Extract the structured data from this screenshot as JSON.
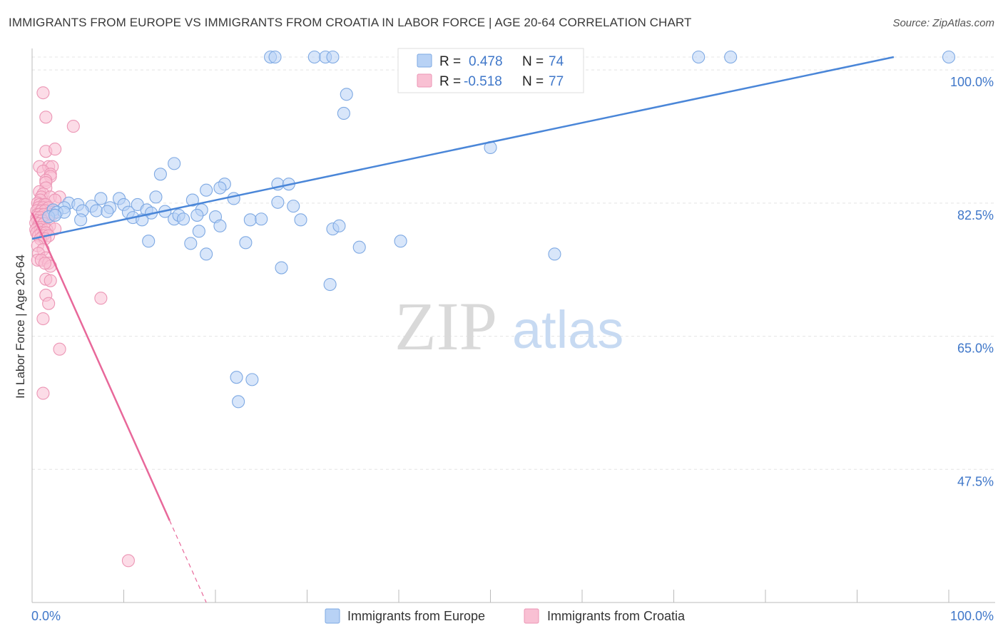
{
  "chart_data": {
    "type": "scatter",
    "title": "IMMIGRANTS FROM EUROPE VS IMMIGRANTS FROM CROATIA IN LABOR FORCE | AGE 20-64 CORRELATION CHART",
    "source": "Source: ZipAtlas.com",
    "ylabel": "In Labor Force | Age 20-64",
    "xlabel": "",
    "xlim": [
      0,
      100
    ],
    "ylim": [
      30,
      101.7
    ],
    "x_tick_labels": [
      "0.0%",
      "100.0%"
    ],
    "y_ticks": [
      {
        "value": 100.0,
        "label": "100.0%"
      },
      {
        "value": 82.5,
        "label": "82.5%"
      },
      {
        "value": 65.0,
        "label": "65.0%"
      },
      {
        "value": 47.5,
        "label": "47.5%"
      }
    ],
    "grid": true,
    "watermark": "ZIPatlas",
    "colors": {
      "europe": "#4a86d8",
      "croatia": "#e8689a",
      "europe_fill": "#b8d2f5",
      "croatia_fill": "#f9c0d3",
      "axis_text": "#3f77c9"
    },
    "legend_stats": [
      {
        "r_label": "R =",
        "r_value": "0.478",
        "n_label": "N =",
        "n_value": "74"
      },
      {
        "r_label": "R =",
        "r_value": "-0.518",
        "n_label": "N =",
        "n_value": "77"
      }
    ],
    "series": [
      {
        "name": "Immigrants from Europe",
        "trend": {
          "x0": 0,
          "y0": 77.8,
          "x1": 94,
          "y1": 101.7
        },
        "points": [
          [
            26.0,
            101.7
          ],
          [
            26.5,
            101.7
          ],
          [
            30.8,
            101.7
          ],
          [
            32.0,
            101.7
          ],
          [
            32.8,
            101.7
          ],
          [
            57.0,
            101.7
          ],
          [
            59.5,
            101.7
          ],
          [
            72.7,
            101.7
          ],
          [
            76.2,
            101.7
          ],
          [
            100,
            101.7
          ],
          [
            34.3,
            96.8
          ],
          [
            34.0,
            94.3
          ],
          [
            50.0,
            89.8
          ],
          [
            15.5,
            87.7
          ],
          [
            14.0,
            86.3
          ],
          [
            21.0,
            85.0
          ],
          [
            26.8,
            85.0
          ],
          [
            28.0,
            85.0
          ],
          [
            20.5,
            84.5
          ],
          [
            19.0,
            84.2
          ],
          [
            22.0,
            83.1
          ],
          [
            13.5,
            83.3
          ],
          [
            17.5,
            82.9
          ],
          [
            7.5,
            83.1
          ],
          [
            9.5,
            83.1
          ],
          [
            26.8,
            82.6
          ],
          [
            28.5,
            82.1
          ],
          [
            4.0,
            82.5
          ],
          [
            6.5,
            82.1
          ],
          [
            3.5,
            81.9
          ],
          [
            5.0,
            82.3
          ],
          [
            11.5,
            82.3
          ],
          [
            10.0,
            82.3
          ],
          [
            8.5,
            81.9
          ],
          [
            2.3,
            81.6
          ],
          [
            2.7,
            81.3
          ],
          [
            3.5,
            81.3
          ],
          [
            5.5,
            81.5
          ],
          [
            7.0,
            81.5
          ],
          [
            8.2,
            81.4
          ],
          [
            10.5,
            81.3
          ],
          [
            12.5,
            81.6
          ],
          [
            13.0,
            81.2
          ],
          [
            14.5,
            81.4
          ],
          [
            18.5,
            81.6
          ],
          [
            1.8,
            80.7
          ],
          [
            2.5,
            80.9
          ],
          [
            11.0,
            80.6
          ],
          [
            15.5,
            80.4
          ],
          [
            16.0,
            80.9
          ],
          [
            18.0,
            80.9
          ],
          [
            20.0,
            80.7
          ],
          [
            5.3,
            80.3
          ],
          [
            12.0,
            80.3
          ],
          [
            16.5,
            80.4
          ],
          [
            23.8,
            80.3
          ],
          [
            25.0,
            80.4
          ],
          [
            29.3,
            80.3
          ],
          [
            32.8,
            79.1
          ],
          [
            33.5,
            79.5
          ],
          [
            18.2,
            78.8
          ],
          [
            20.5,
            79.5
          ],
          [
            12.7,
            77.5
          ],
          [
            17.3,
            77.2
          ],
          [
            23.3,
            77.3
          ],
          [
            35.7,
            76.7
          ],
          [
            40.2,
            77.5
          ],
          [
            19.0,
            75.8
          ],
          [
            57.0,
            75.8
          ],
          [
            27.2,
            74.0
          ],
          [
            32.5,
            71.8
          ],
          [
            22.3,
            59.6
          ],
          [
            24.0,
            59.3
          ],
          [
            22.5,
            56.4
          ]
        ]
      },
      {
        "name": "Immigrants from Croatia",
        "trend": {
          "x0": 0,
          "y0": 81.2,
          "x1": 19,
          "y1": 30,
          "solid_until_x": 15
        },
        "points": [
          [
            1.2,
            97.0
          ],
          [
            1.5,
            93.8
          ],
          [
            4.5,
            92.6
          ],
          [
            1.5,
            89.3
          ],
          [
            2.5,
            89.6
          ],
          [
            0.8,
            87.3
          ],
          [
            1.8,
            87.3
          ],
          [
            2.2,
            87.3
          ],
          [
            1.2,
            86.7
          ],
          [
            2.0,
            86.3
          ],
          [
            2.0,
            86.0
          ],
          [
            1.5,
            85.5
          ],
          [
            1.5,
            85.2
          ],
          [
            1.5,
            84.5
          ],
          [
            0.8,
            84.0
          ],
          [
            1.2,
            83.7
          ],
          [
            1.0,
            83.3
          ],
          [
            2.0,
            83.3
          ],
          [
            3.0,
            83.3
          ],
          [
            0.9,
            82.9
          ],
          [
            2.5,
            82.9
          ],
          [
            0.6,
            82.5
          ],
          [
            0.8,
            82.3
          ],
          [
            1.3,
            82.3
          ],
          [
            1.5,
            82.3
          ],
          [
            0.7,
            81.9
          ],
          [
            1.2,
            81.9
          ],
          [
            1.8,
            81.9
          ],
          [
            0.5,
            81.5
          ],
          [
            1.0,
            81.5
          ],
          [
            1.4,
            81.5
          ],
          [
            2.0,
            81.3
          ],
          [
            0.6,
            81.0
          ],
          [
            0.8,
            81.0
          ],
          [
            1.3,
            81.0
          ],
          [
            2.2,
            81.0
          ],
          [
            0.5,
            80.6
          ],
          [
            0.9,
            80.6
          ],
          [
            1.7,
            80.6
          ],
          [
            0.6,
            80.2
          ],
          [
            1.1,
            80.2
          ],
          [
            0.4,
            79.9
          ],
          [
            0.8,
            79.8
          ],
          [
            1.3,
            79.8
          ],
          [
            1.9,
            79.5
          ],
          [
            0.6,
            79.3
          ],
          [
            1.0,
            79.3
          ],
          [
            0.4,
            79.0
          ],
          [
            0.9,
            79.0
          ],
          [
            1.6,
            79.0
          ],
          [
            2.5,
            79.1
          ],
          [
            0.5,
            78.6
          ],
          [
            1.0,
            78.6
          ],
          [
            1.5,
            78.6
          ],
          [
            0.7,
            78.2
          ],
          [
            1.2,
            78.2
          ],
          [
            1.8,
            78.2
          ],
          [
            0.9,
            77.8
          ],
          [
            1.4,
            77.8
          ],
          [
            0.6,
            76.9
          ],
          [
            1.2,
            76.4
          ],
          [
            0.7,
            75.9
          ],
          [
            1.5,
            75.3
          ],
          [
            0.6,
            75.0
          ],
          [
            1.0,
            75.0
          ],
          [
            1.8,
            74.6
          ],
          [
            2.0,
            74.2
          ],
          [
            1.4,
            74.6
          ],
          [
            1.5,
            72.5
          ],
          [
            2.0,
            72.3
          ],
          [
            1.5,
            70.4
          ],
          [
            1.8,
            69.3
          ],
          [
            7.5,
            70.0
          ],
          [
            1.2,
            67.3
          ],
          [
            3.0,
            63.3
          ],
          [
            1.2,
            57.5
          ],
          [
            10.5,
            35.5
          ]
        ]
      }
    ],
    "legend": [
      "Immigrants from Europe",
      "Immigrants from Croatia"
    ]
  }
}
